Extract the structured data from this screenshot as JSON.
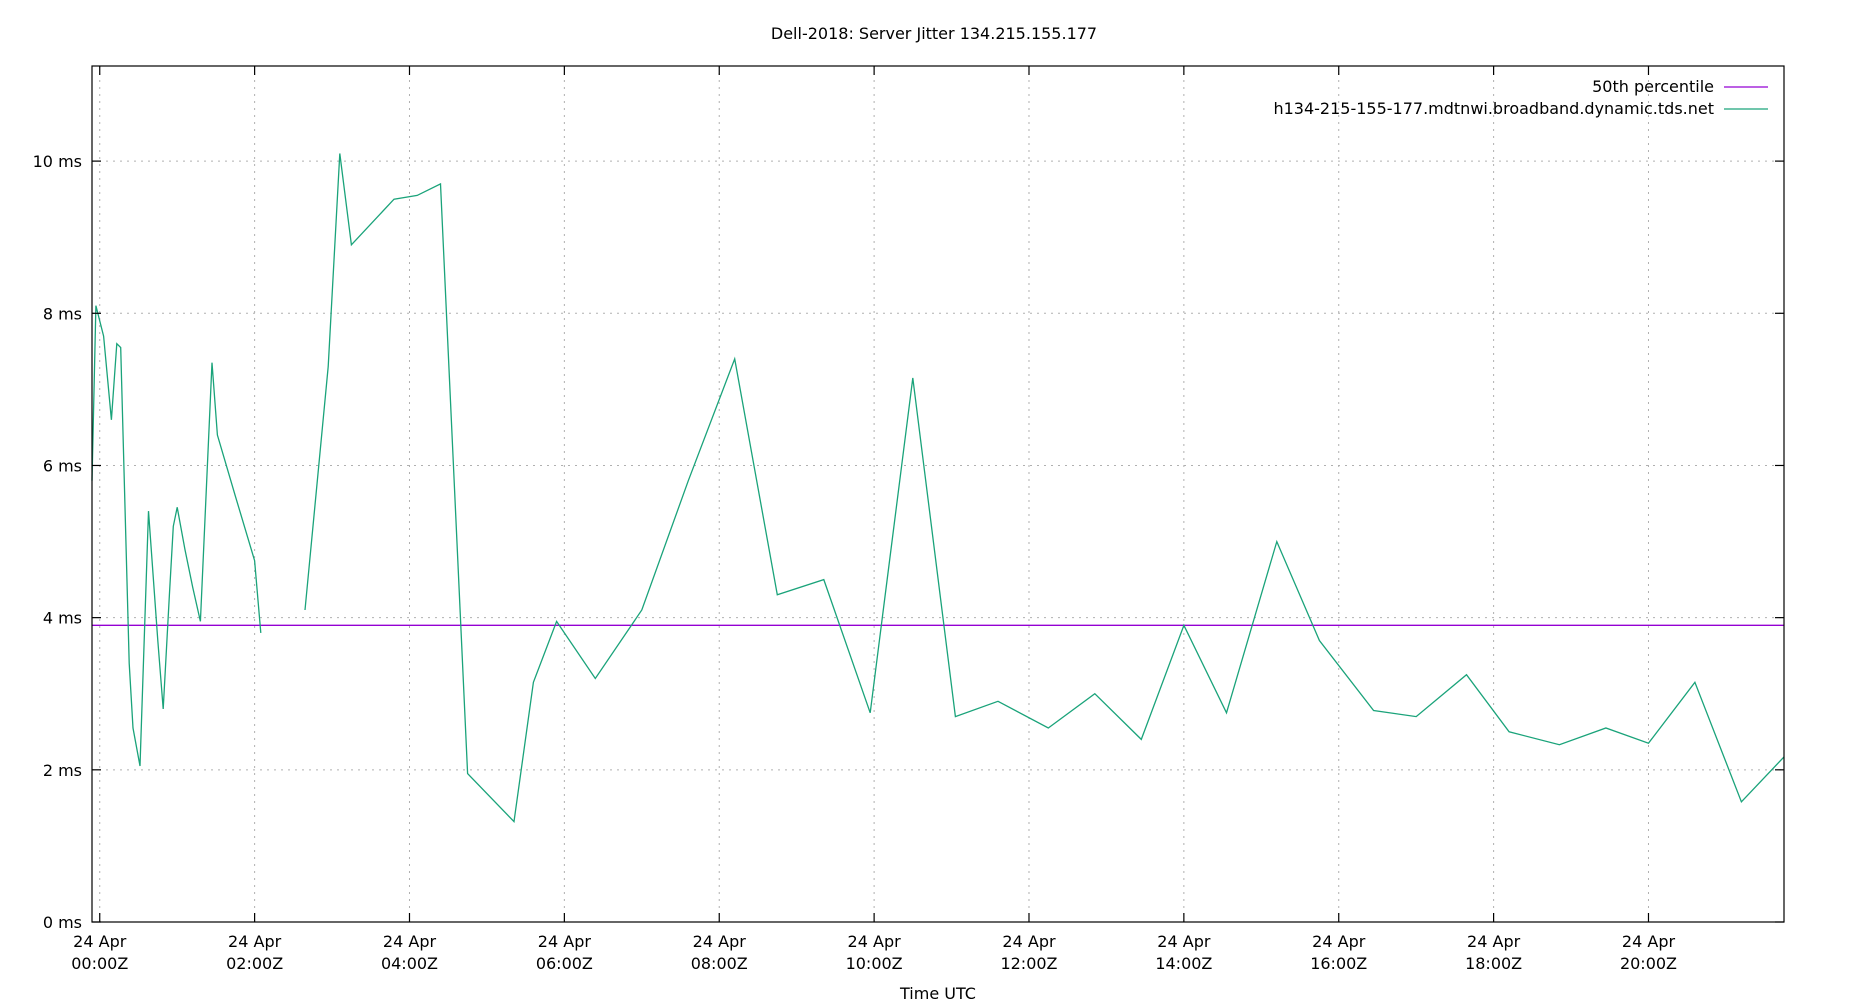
{
  "chart_data": {
    "type": "line",
    "title": "Dell-2018: Server Jitter 134.215.155.177",
    "xlabel": "Time UTC",
    "ylabel": "",
    "x_unit": "hours UTC on 24 Apr",
    "xlim": [
      -0.1,
      21.75
    ],
    "ylim": [
      0,
      11.25
    ],
    "y_ticks": [
      {
        "value": 0,
        "label": "0 ms"
      },
      {
        "value": 2,
        "label": "2 ms"
      },
      {
        "value": 4,
        "label": "4 ms"
      },
      {
        "value": 6,
        "label": "6 ms"
      },
      {
        "value": 8,
        "label": "8 ms"
      },
      {
        "value": 10,
        "label": "10 ms"
      }
    ],
    "x_ticks": [
      {
        "value": 0,
        "line1": "24 Apr",
        "line2": "00:00Z"
      },
      {
        "value": 2,
        "line1": "24 Apr",
        "line2": "02:00Z"
      },
      {
        "value": 4,
        "line1": "24 Apr",
        "line2": "04:00Z"
      },
      {
        "value": 6,
        "line1": "24 Apr",
        "line2": "06:00Z"
      },
      {
        "value": 8,
        "line1": "24 Apr",
        "line2": "08:00Z"
      },
      {
        "value": 10,
        "line1": "24 Apr",
        "line2": "10:00Z"
      },
      {
        "value": 12,
        "line1": "24 Apr",
        "line2": "12:00Z"
      },
      {
        "value": 14,
        "line1": "24 Apr",
        "line2": "14:00Z"
      },
      {
        "value": 16,
        "line1": "24 Apr",
        "line2": "16:00Z"
      },
      {
        "value": 18,
        "line1": "24 Apr",
        "line2": "18:00Z"
      },
      {
        "value": 20,
        "line1": "24 Apr",
        "line2": "20:00Z"
      }
    ],
    "grid": true,
    "legend_position": "top-right",
    "series": [
      {
        "name": "50th percentile",
        "color": "#9400d3",
        "segments": [
          [
            [
              -0.1,
              3.9
            ],
            [
              21.75,
              3.9
            ]
          ]
        ]
      },
      {
        "name": "h134-215-155-177.mdtnwi.broadband.dynamic.tds.net",
        "color": "#1aa37a",
        "segments": [
          [
            [
              -0.1,
              5.8
            ],
            [
              -0.05,
              8.1
            ],
            [
              0.05,
              7.7
            ],
            [
              0.15,
              6.6
            ],
            [
              0.22,
              7.6
            ],
            [
              0.27,
              7.55
            ],
            [
              0.38,
              3.4
            ],
            [
              0.43,
              2.55
            ],
            [
              0.52,
              2.05
            ],
            [
              0.63,
              5.4
            ],
            [
              0.75,
              3.7
            ],
            [
              0.82,
              2.8
            ],
            [
              0.9,
              4.3
            ],
            [
              0.95,
              5.2
            ],
            [
              1.0,
              5.45
            ],
            [
              1.1,
              4.9
            ],
            [
              1.2,
              4.4
            ],
            [
              1.3,
              3.95
            ],
            [
              1.45,
              7.35
            ],
            [
              1.52,
              6.4
            ],
            [
              1.75,
              5.6
            ],
            [
              2.0,
              4.75
            ],
            [
              2.08,
              3.8
            ]
          ],
          [
            [
              2.65,
              4.1
            ],
            [
              2.95,
              7.3
            ],
            [
              3.1,
              10.1
            ],
            [
              3.25,
              8.9
            ],
            [
              3.8,
              9.5
            ],
            [
              4.1,
              9.55
            ],
            [
              4.4,
              9.7
            ],
            [
              4.75,
              1.95
            ],
            [
              5.35,
              1.32
            ],
            [
              5.6,
              3.15
            ],
            [
              5.9,
              3.95
            ],
            [
              6.4,
              3.2
            ],
            [
              7.0,
              4.1
            ],
            [
              7.6,
              5.8
            ],
            [
              8.2,
              7.4
            ],
            [
              8.75,
              4.3
            ],
            [
              9.35,
              4.5
            ],
            [
              9.95,
              2.75
            ],
            [
              10.5,
              7.15
            ],
            [
              11.05,
              2.7
            ],
            [
              11.6,
              2.9
            ],
            [
              12.25,
              2.55
            ],
            [
              12.85,
              3.0
            ],
            [
              13.45,
              2.4
            ],
            [
              14.0,
              3.9
            ],
            [
              14.55,
              2.75
            ],
            [
              15.2,
              5.0
            ],
            [
              15.75,
              3.7
            ],
            [
              16.45,
              2.78
            ],
            [
              17.0,
              2.7
            ],
            [
              17.65,
              3.25
            ],
            [
              18.2,
              2.5
            ],
            [
              18.85,
              2.33
            ],
            [
              19.45,
              2.55
            ],
            [
              20.0,
              2.35
            ],
            [
              20.6,
              3.15
            ],
            [
              21.2,
              1.58
            ],
            [
              21.75,
              2.17
            ]
          ]
        ]
      }
    ]
  }
}
